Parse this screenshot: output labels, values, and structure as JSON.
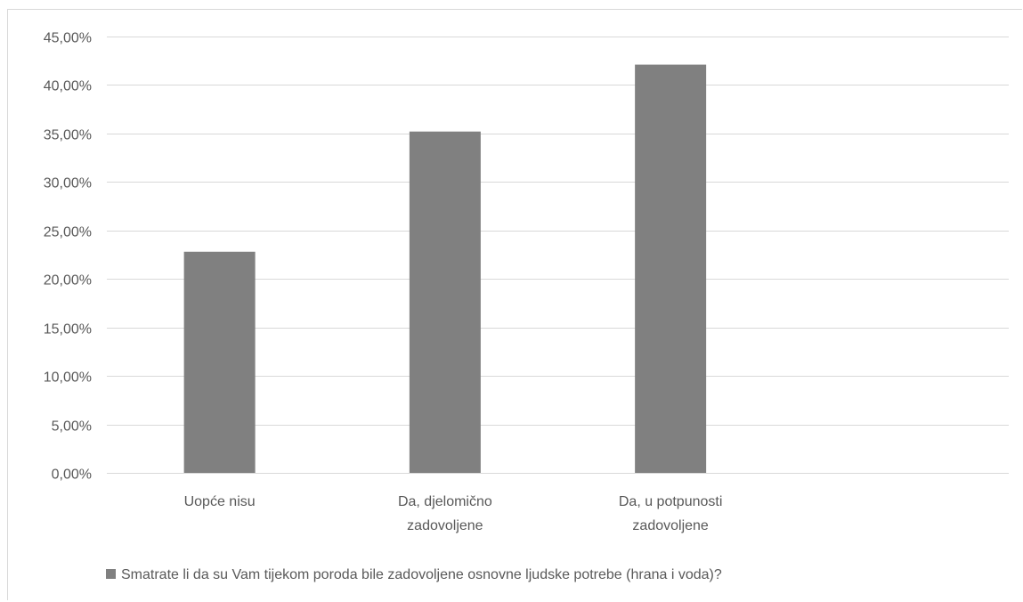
{
  "chart_data": {
    "type": "bar",
    "categories": [
      [
        "Uopće nisu"
      ],
      [
        "Da, djelomično",
        "zadovoljene"
      ],
      [
        "Da, u potpunosti",
        "zadovoljene"
      ]
    ],
    "series": [
      {
        "name": "Smatrate li da su Vam tijekom poroda bile zadovoljene osnovne ljudske potrebe (hrana i voda)?",
        "values": [
          22.8,
          35.2,
          42.1
        ],
        "color": "#808080"
      }
    ],
    "ylim": [
      0,
      45
    ],
    "yticks": [
      0,
      5,
      10,
      15,
      20,
      25,
      30,
      35,
      40,
      45
    ],
    "ytick_labels": [
      "0,00%",
      "5,00%",
      "10,00%",
      "15,00%",
      "20,00%",
      "25,00%",
      "30,00%",
      "35,00%",
      "40,00%",
      "45,00%"
    ],
    "grid": true,
    "legend_position": "bottom-left",
    "gridline_color": "#d9d9d9"
  }
}
